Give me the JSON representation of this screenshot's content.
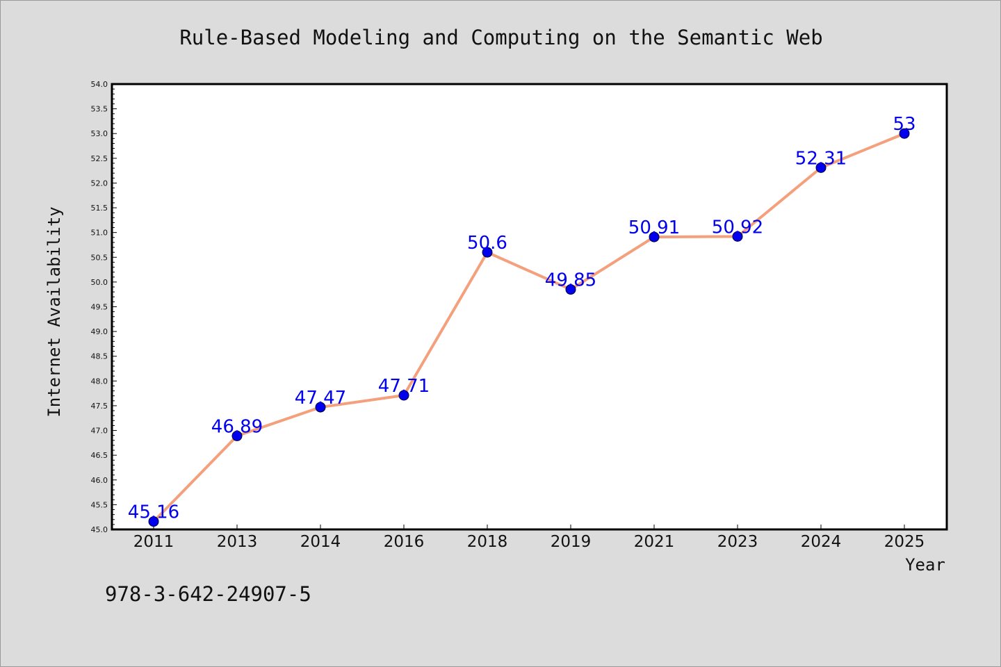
{
  "chart_data": {
    "type": "line",
    "title": "Rule-Based Modeling and Computing on the Semantic Web",
    "xlabel": "Year",
    "ylabel": "Internet Availability",
    "categories": [
      "2011",
      "2013",
      "2014",
      "2016",
      "2018",
      "2019",
      "2021",
      "2023",
      "2024",
      "2025"
    ],
    "series": [
      {
        "values": [
          45.16,
          46.89,
          47.47,
          47.71,
          50.6,
          49.85,
          50.91,
          50.92,
          52.31,
          53
        ]
      }
    ],
    "data_labels": [
      "45.16",
      "46.89",
      "47.47",
      "47.71",
      "50.6",
      "49.85",
      "50.91",
      "50.92",
      "52.31",
      "53"
    ],
    "ylim": [
      45.0,
      54.0
    ],
    "yticks": [
      "45.0",
      "45.5",
      "46.0",
      "46.5",
      "47.0",
      "47.5",
      "48.0",
      "48.5",
      "49.0",
      "49.5",
      "50.0",
      "50.5",
      "51.0",
      "51.5",
      "52.0",
      "52.5",
      "53.0",
      "53.5",
      "54.0"
    ],
    "grid": false,
    "legend": "none",
    "line_color": "#f4a07c",
    "marker_color": "#0000ee",
    "label_color": "#0000ee"
  },
  "footer": {
    "isbn": "978-3-642-24907-5"
  }
}
